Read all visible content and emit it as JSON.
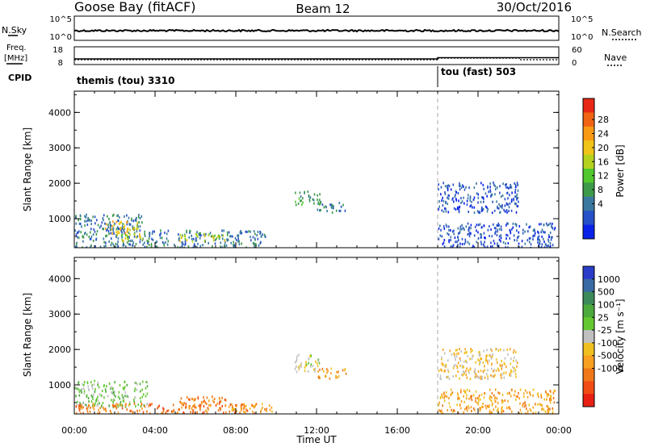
{
  "header": {
    "station": "Goose Bay (fitACF)",
    "beam": "Beam 12",
    "date": "30/Oct/2016"
  },
  "params": {
    "nsky_label": "N.Sky",
    "nsky_ticks": [
      "10^5",
      "10^0"
    ],
    "nsearch_label": "N.Search",
    "nsearch_ticks": [
      "10^5",
      "10^0"
    ],
    "freq_label_line1": "Freq.",
    "freq_label_line2": "[MHz]",
    "freq_ticks": [
      "18",
      "8"
    ],
    "nave_label": "Nave",
    "nave_ticks": [
      "60",
      "0"
    ],
    "cpid_label": "CPID",
    "cpid_segments": [
      {
        "text": "themis (tou) 3310",
        "start_hour": 0
      },
      {
        "text": "tou (fast) 503",
        "start_hour": 18
      }
    ]
  },
  "chart_data": [
    {
      "type": "heatmap",
      "title": "",
      "ylabel": "Slant Range [km]",
      "xlabel": "",
      "xlim_hours": [
        0,
        24
      ],
      "ylim": [
        180,
        4600
      ],
      "yticks": [
        1000,
        2000,
        3000,
        4000
      ],
      "colorbar": {
        "label": "Power [dB]",
        "ticks": [
          "4",
          "8",
          "12",
          "16",
          "20",
          "24",
          "28"
        ],
        "colors": [
          "#0a22e8",
          "#2650c8",
          "#3a78a0",
          "#3c9a4a",
          "#52c82e",
          "#b4d21e",
          "#f0c418",
          "#f89a14",
          "#f06414",
          "#e82814"
        ]
      },
      "scatter_regions": [
        {
          "t": [
            0.0,
            3.6
          ],
          "r": [
            200,
            1150
          ],
          "level": 2
        },
        {
          "t": [
            1.5,
            3.2
          ],
          "r": [
            600,
            950
          ],
          "level": 6
        },
        {
          "t": [
            2.0,
            3.4
          ],
          "r": [
            400,
            600
          ],
          "level": 5
        },
        {
          "t": [
            3.6,
            9.5
          ],
          "r": [
            200,
            700
          ],
          "level": 2
        },
        {
          "t": [
            5.2,
            7.5
          ],
          "r": [
            380,
            600
          ],
          "level": 5
        },
        {
          "t": [
            10.9,
            12.2
          ],
          "r": [
            1400,
            1800
          ],
          "level": 3
        },
        {
          "t": [
            12.0,
            13.5
          ],
          "r": [
            1200,
            1500
          ],
          "level": 2
        },
        {
          "t": [
            18.0,
            22.0
          ],
          "r": [
            1200,
            2050
          ],
          "level": 1
        },
        {
          "t": [
            18.0,
            23.8
          ],
          "r": [
            200,
            900
          ],
          "level": 1
        }
      ]
    },
    {
      "type": "heatmap",
      "title": "",
      "ylabel": "Slant Range [km]",
      "xlabel": "Time UT",
      "xlim_hours": [
        0,
        24
      ],
      "ylim": [
        180,
        4600
      ],
      "yticks": [
        1000,
        2000,
        3000,
        4000
      ],
      "xticks": [
        "00:00",
        "04:00",
        "08:00",
        "12:00",
        "16:00",
        "20:00",
        "00:00"
      ],
      "colorbar": {
        "label": "Velocity [m s⁻¹]",
        "ticks": [
          "1000",
          "500",
          "100",
          "25",
          "-25",
          "-100",
          "-500",
          "-1000"
        ],
        "colors": [
          "#2a3cc8",
          "#3a6aa6",
          "#3c8a5a",
          "#4caa3c",
          "#64c830",
          "#c0c0c0",
          "#f0c020",
          "#f8a020",
          "#f07818",
          "#f04c14",
          "#e82014"
        ]
      },
      "scatter_regions": [
        {
          "t": [
            0.0,
            3.6
          ],
          "r": [
            400,
            1150
          ],
          "level": 4
        },
        {
          "t": [
            0.0,
            9.0
          ],
          "r": [
            200,
            500
          ],
          "level": 8
        },
        {
          "t": [
            5.2,
            7.6
          ],
          "r": [
            380,
            700
          ],
          "level": 8
        },
        {
          "t": [
            7.6,
            9.8
          ],
          "r": [
            250,
            500
          ],
          "level": 7
        },
        {
          "t": [
            10.9,
            12.2
          ],
          "r": [
            1400,
            1900
          ],
          "level": 5
        },
        {
          "t": [
            12.0,
            13.5
          ],
          "r": [
            1200,
            1500
          ],
          "level": 7
        },
        {
          "t": [
            18.0,
            22.0
          ],
          "r": [
            1200,
            2050
          ],
          "level": 6
        },
        {
          "t": [
            18.0,
            23.8
          ],
          "r": [
            200,
            900
          ],
          "level": 7
        }
      ]
    }
  ]
}
